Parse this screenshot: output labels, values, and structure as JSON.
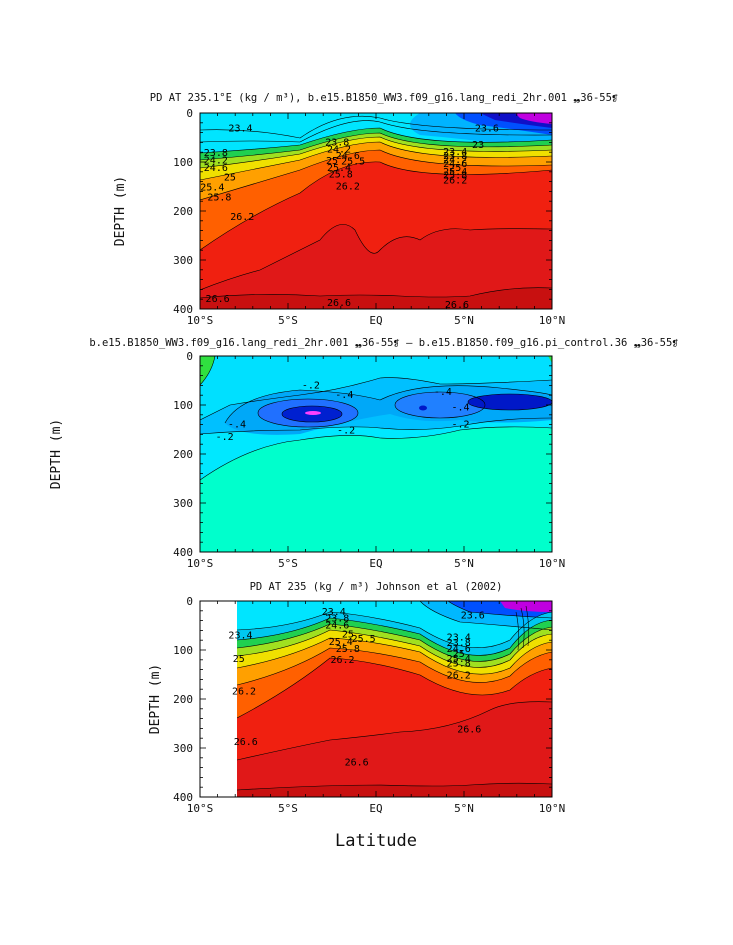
{
  "panels": [
    {
      "id": "top",
      "title": "PD AT 235.1°E (kg / m³), b.e15.B1850_WW3.f09_g16.lang_redi_2hr.001 ❠36-55❡",
      "ylabel": "DEPTH (m)"
    },
    {
      "id": "middle",
      "title": "b.e15.B1850_WW3.f09_g16.lang_redi_2hr.001 ❠36-55❡ – b.e15.B1850.f09_g16.pi_control.36 ❠36-55❡",
      "ylabel": "DEPTH (m)"
    },
    {
      "id": "bottom",
      "title": "PD AT 235 (kg / m³) Johnson et al (2002)",
      "ylabel": "DEPTH (m)"
    }
  ],
  "xlabel": "Latitude",
  "chart_data": [
    {
      "type": "contour",
      "variable": "potential density",
      "units": "kg / m3",
      "x": [
        -10,
        -5,
        0,
        5,
        10
      ],
      "xtick_labels": [
        "10°S",
        "5°S",
        "EQ",
        "5°N",
        "10°N"
      ],
      "ytick_values": [
        0,
        100,
        200,
        300,
        400
      ],
      "ytick_labels": [
        "0",
        "100",
        "200",
        "300",
        "400"
      ],
      "xlim": [
        -10,
        10
      ],
      "ylim": [
        400,
        0
      ],
      "contour_labels": [
        {
          "text": "23.4",
          "lat": -7.7,
          "depth": 32
        },
        {
          "text": "23.8",
          "lat": -9.1,
          "depth": 82
        },
        {
          "text": "24.2",
          "lat": -9.1,
          "depth": 97
        },
        {
          "text": "24.6",
          "lat": -9.1,
          "depth": 112
        },
        {
          "text": "25",
          "lat": -8.3,
          "depth": 132
        },
        {
          "text": "25.4",
          "lat": -9.3,
          "depth": 152
        },
        {
          "text": "25.8",
          "lat": -8.9,
          "depth": 172
        },
        {
          "text": "26.2",
          "lat": -7.6,
          "depth": 212
        },
        {
          "text": "23.8",
          "lat": -2.2,
          "depth": 60
        },
        {
          "text": "24.2",
          "lat": -2.1,
          "depth": 74
        },
        {
          "text": "24.6",
          "lat": -1.6,
          "depth": 88
        },
        {
          "text": "25",
          "lat": -2.5,
          "depth": 98
        },
        {
          "text": "25.5",
          "lat": -1.3,
          "depth": 99
        },
        {
          "text": "25.4",
          "lat": -2.1,
          "depth": 112
        },
        {
          "text": "25.8",
          "lat": -2.0,
          "depth": 126
        },
        {
          "text": "26.2",
          "lat": -1.6,
          "depth": 150
        },
        {
          "text": "23.6",
          "lat": 6.3,
          "depth": 32
        },
        {
          "text": "23",
          "lat": 5.8,
          "depth": 65
        },
        {
          "text": "23.4",
          "lat": 4.5,
          "depth": 80
        },
        {
          "text": "23.8",
          "lat": 4.5,
          "depth": 88
        },
        {
          "text": "24.2",
          "lat": 4.5,
          "depth": 96
        },
        {
          "text": "24.6",
          "lat": 4.5,
          "depth": 104
        },
        {
          "text": "25",
          "lat": 4.5,
          "depth": 112
        },
        {
          "text": "25.4",
          "lat": 4.5,
          "depth": 120
        },
        {
          "text": "25.8",
          "lat": 4.5,
          "depth": 128
        },
        {
          "text": "26.2",
          "lat": 4.5,
          "depth": 138
        },
        {
          "text": "26.6",
          "lat": -9.0,
          "depth": 380
        },
        {
          "text": "26.6",
          "lat": -2.1,
          "depth": 388
        },
        {
          "text": "26.6",
          "lat": 4.6,
          "depth": 392
        }
      ]
    },
    {
      "type": "contour",
      "variable": "potential density difference",
      "x": [
        -10,
        -5,
        0,
        5,
        10
      ],
      "xtick_labels": [
        "10°S",
        "5°S",
        "EQ",
        "5°N",
        "10°N"
      ],
      "ytick_values": [
        0,
        100,
        200,
        300,
        400
      ],
      "ytick_labels": [
        "0",
        "100",
        "200",
        "300",
        "400"
      ],
      "xlim": [
        -10,
        10
      ],
      "ylim": [
        400,
        0
      ],
      "contour_labels": [
        {
          "text": "-.2",
          "lat": -3.7,
          "depth": 60
        },
        {
          "text": "-.4",
          "lat": -1.8,
          "depth": 80
        },
        {
          "text": "-.4",
          "lat": -7.9,
          "depth": 140
        },
        {
          "text": "-.2",
          "lat": -8.6,
          "depth": 165
        },
        {
          "text": "-.2",
          "lat": -1.7,
          "depth": 152
        },
        {
          "text": "-.4",
          "lat": 3.8,
          "depth": 73
        },
        {
          "text": "-.4",
          "lat": 4.8,
          "depth": 105
        },
        {
          "text": "-.2",
          "lat": 4.8,
          "depth": 140
        }
      ]
    },
    {
      "type": "contour",
      "variable": "potential density (observed)",
      "units": "kg / m3",
      "x": [
        -10,
        -5,
        0,
        5,
        10
      ],
      "xtick_labels": [
        "10°S",
        "5°S",
        "EQ",
        "5°N",
        "10°N"
      ],
      "ytick_values": [
        0,
        100,
        200,
        300,
        400
      ],
      "ytick_labels": [
        "0",
        "100",
        "200",
        "300",
        "400"
      ],
      "xlim": [
        -10,
        10
      ],
      "ylim": [
        400,
        0
      ],
      "data_start_lat": -8,
      "contour_labels": [
        {
          "text": "23.4",
          "lat": -7.7,
          "depth": 70
        },
        {
          "text": "25",
          "lat": -7.8,
          "depth": 118
        },
        {
          "text": "26.2",
          "lat": -7.5,
          "depth": 185
        },
        {
          "text": "26.6",
          "lat": -7.4,
          "depth": 288
        },
        {
          "text": "26.6",
          "lat": -1.1,
          "depth": 330
        },
        {
          "text": "26.6",
          "lat": 5.3,
          "depth": 262
        },
        {
          "text": "23.4",
          "lat": -2.4,
          "depth": 22
        },
        {
          "text": "23.8",
          "lat": -2.2,
          "depth": 36
        },
        {
          "text": "24.6",
          "lat": -2.2,
          "depth": 50
        },
        {
          "text": "25",
          "lat": -1.6,
          "depth": 68
        },
        {
          "text": "25.5",
          "lat": -0.7,
          "depth": 78
        },
        {
          "text": "25.4",
          "lat": -2.0,
          "depth": 84
        },
        {
          "text": "25.8",
          "lat": -1.6,
          "depth": 98
        },
        {
          "text": "26.2",
          "lat": -1.9,
          "depth": 120
        },
        {
          "text": "23.6",
          "lat": 5.5,
          "depth": 30
        },
        {
          "text": "23.4",
          "lat": 4.7,
          "depth": 74
        },
        {
          "text": "23.8",
          "lat": 4.7,
          "depth": 86
        },
        {
          "text": "24.6",
          "lat": 4.7,
          "depth": 98
        },
        {
          "text": "25",
          "lat": 4.7,
          "depth": 108
        },
        {
          "text": "25.4",
          "lat": 4.7,
          "depth": 118
        },
        {
          "text": "25.8",
          "lat": 4.7,
          "depth": 128
        },
        {
          "text": "26.2",
          "lat": 4.7,
          "depth": 152
        }
      ]
    }
  ]
}
